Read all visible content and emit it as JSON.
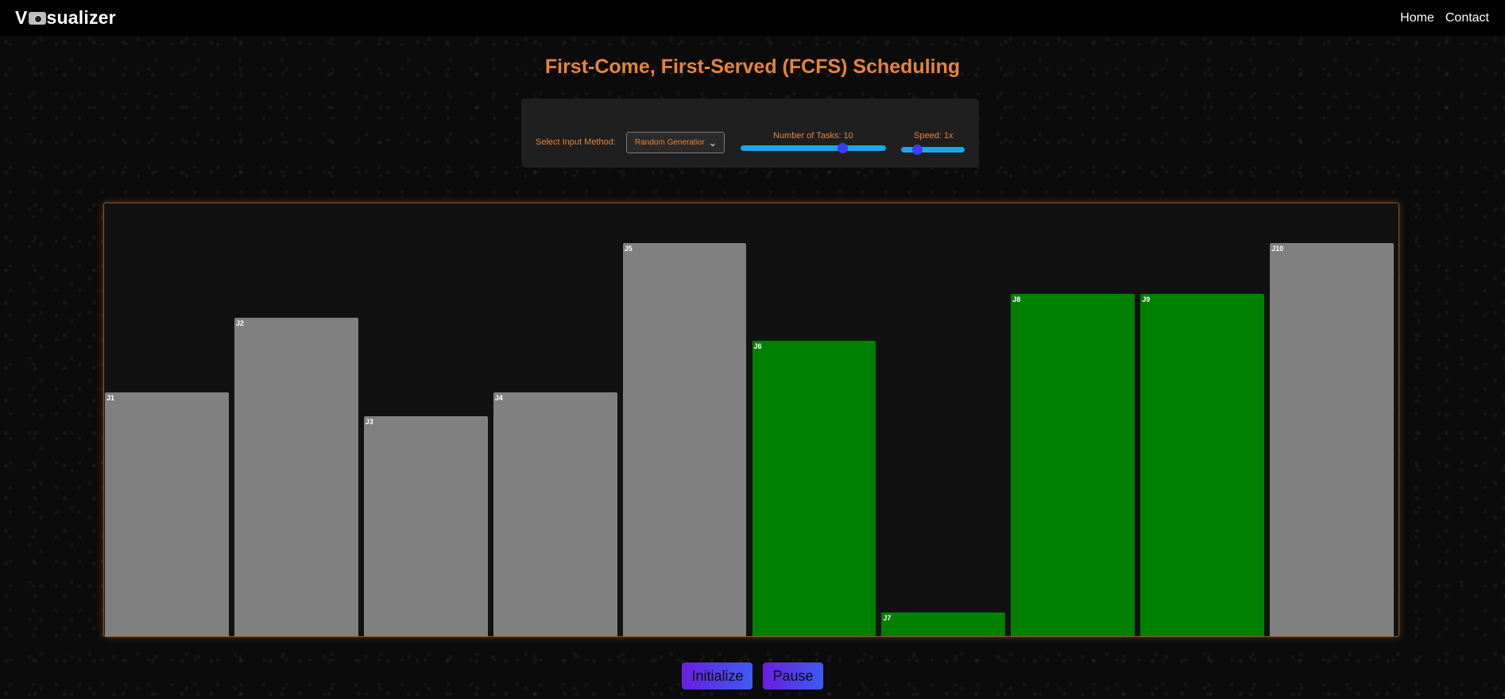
{
  "nav": {
    "brand_left": "V",
    "brand_right": "sualizer",
    "logo_icon": "camera-logo-icon",
    "links": [
      "Home",
      "Contact"
    ]
  },
  "title": "First-Come, First-Served (FCFS) Scheduling",
  "controls": {
    "input_method_label": "Select Input Method:",
    "input_method_value": "Random Generation",
    "tasks_label": "Number of Tasks: 10",
    "tasks_value": 10,
    "tasks_fraction": 0.7,
    "speed_label": "Speed: 1x",
    "speed_fraction": 0.25
  },
  "chart_data": {
    "type": "bar",
    "categories": [
      "J1",
      "J2",
      "J3",
      "J4",
      "J5",
      "J6",
      "J7",
      "J8",
      "J9",
      "J10"
    ],
    "values": [
      62,
      81,
      56,
      62,
      100,
      75,
      6,
      87,
      87,
      100
    ],
    "states": [
      "pending",
      "pending",
      "pending",
      "pending",
      "pending",
      "done",
      "done",
      "done",
      "done",
      "pending"
    ],
    "colors": {
      "pending": "#808080",
      "done": "#008000"
    },
    "ylim": [
      0,
      110
    ]
  },
  "buttons": {
    "initialize": "Initialize",
    "pause": "Pause"
  }
}
